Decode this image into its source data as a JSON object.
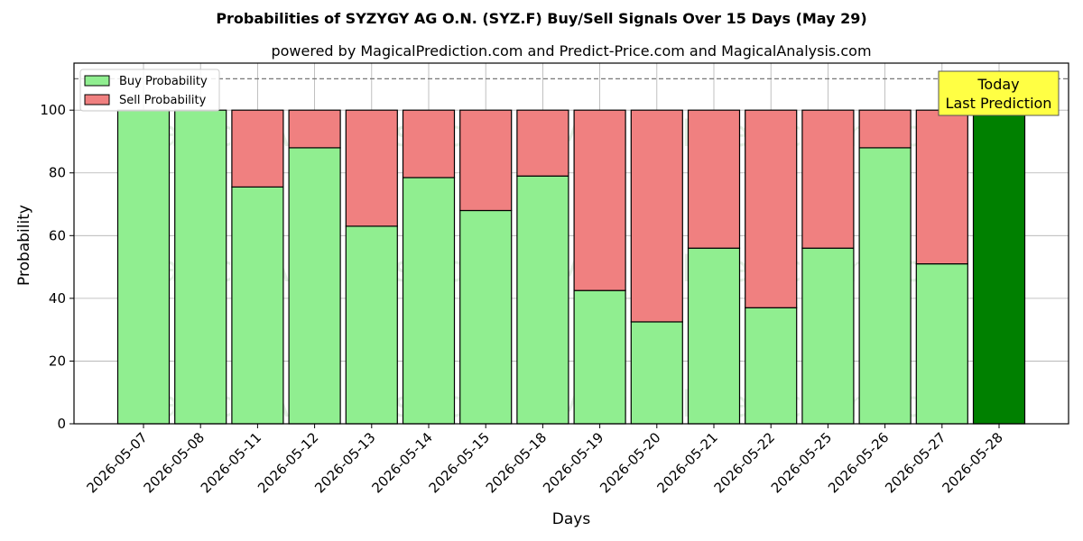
{
  "chart_data": {
    "type": "bar",
    "stacked": true,
    "title": "Probabilities of SYZYGY AG O.N. (SYZ.F) Buy/Sell Signals Over 15 Days (May 29)",
    "subtitle": "powered by MagicalPrediction.com and Predict-Price.com and MagicalAnalysis.com",
    "xlabel": "Days",
    "ylabel": "Probability",
    "ylim": [
      0,
      115
    ],
    "yticks": [
      0,
      20,
      40,
      60,
      80,
      100
    ],
    "grid": true,
    "legend_position": "top-left",
    "threshold_line": 110,
    "categories": [
      "2026-05-07",
      "2026-05-08",
      "2026-05-11",
      "2026-05-12",
      "2026-05-13",
      "2026-05-14",
      "2026-05-15",
      "2026-05-18",
      "2026-05-19",
      "2026-05-20",
      "2026-05-21",
      "2026-05-22",
      "2026-05-25",
      "2026-05-26",
      "2026-05-27",
      "2026-05-28"
    ],
    "series": [
      {
        "name": "Buy Probability",
        "color": "#90EE90",
        "values": [
          100,
          100,
          75.5,
          88,
          63,
          78.5,
          68,
          79,
          42.5,
          32.5,
          56,
          37,
          56,
          88,
          51,
          100
        ]
      },
      {
        "name": "Sell Probability",
        "color": "#F08080",
        "values": [
          0,
          0,
          24.5,
          12,
          37,
          21.5,
          32,
          21,
          57.5,
          67.5,
          44,
          63,
          44,
          12,
          49,
          0
        ]
      }
    ],
    "highlight": {
      "index": 15,
      "color": "#008000"
    },
    "annotation": {
      "lines": [
        "Today",
        "Last Prediction"
      ],
      "background": "#FFFF44"
    },
    "watermarks": [
      "MagicalAnalysis.com",
      "MagicalPrediction.com"
    ]
  }
}
